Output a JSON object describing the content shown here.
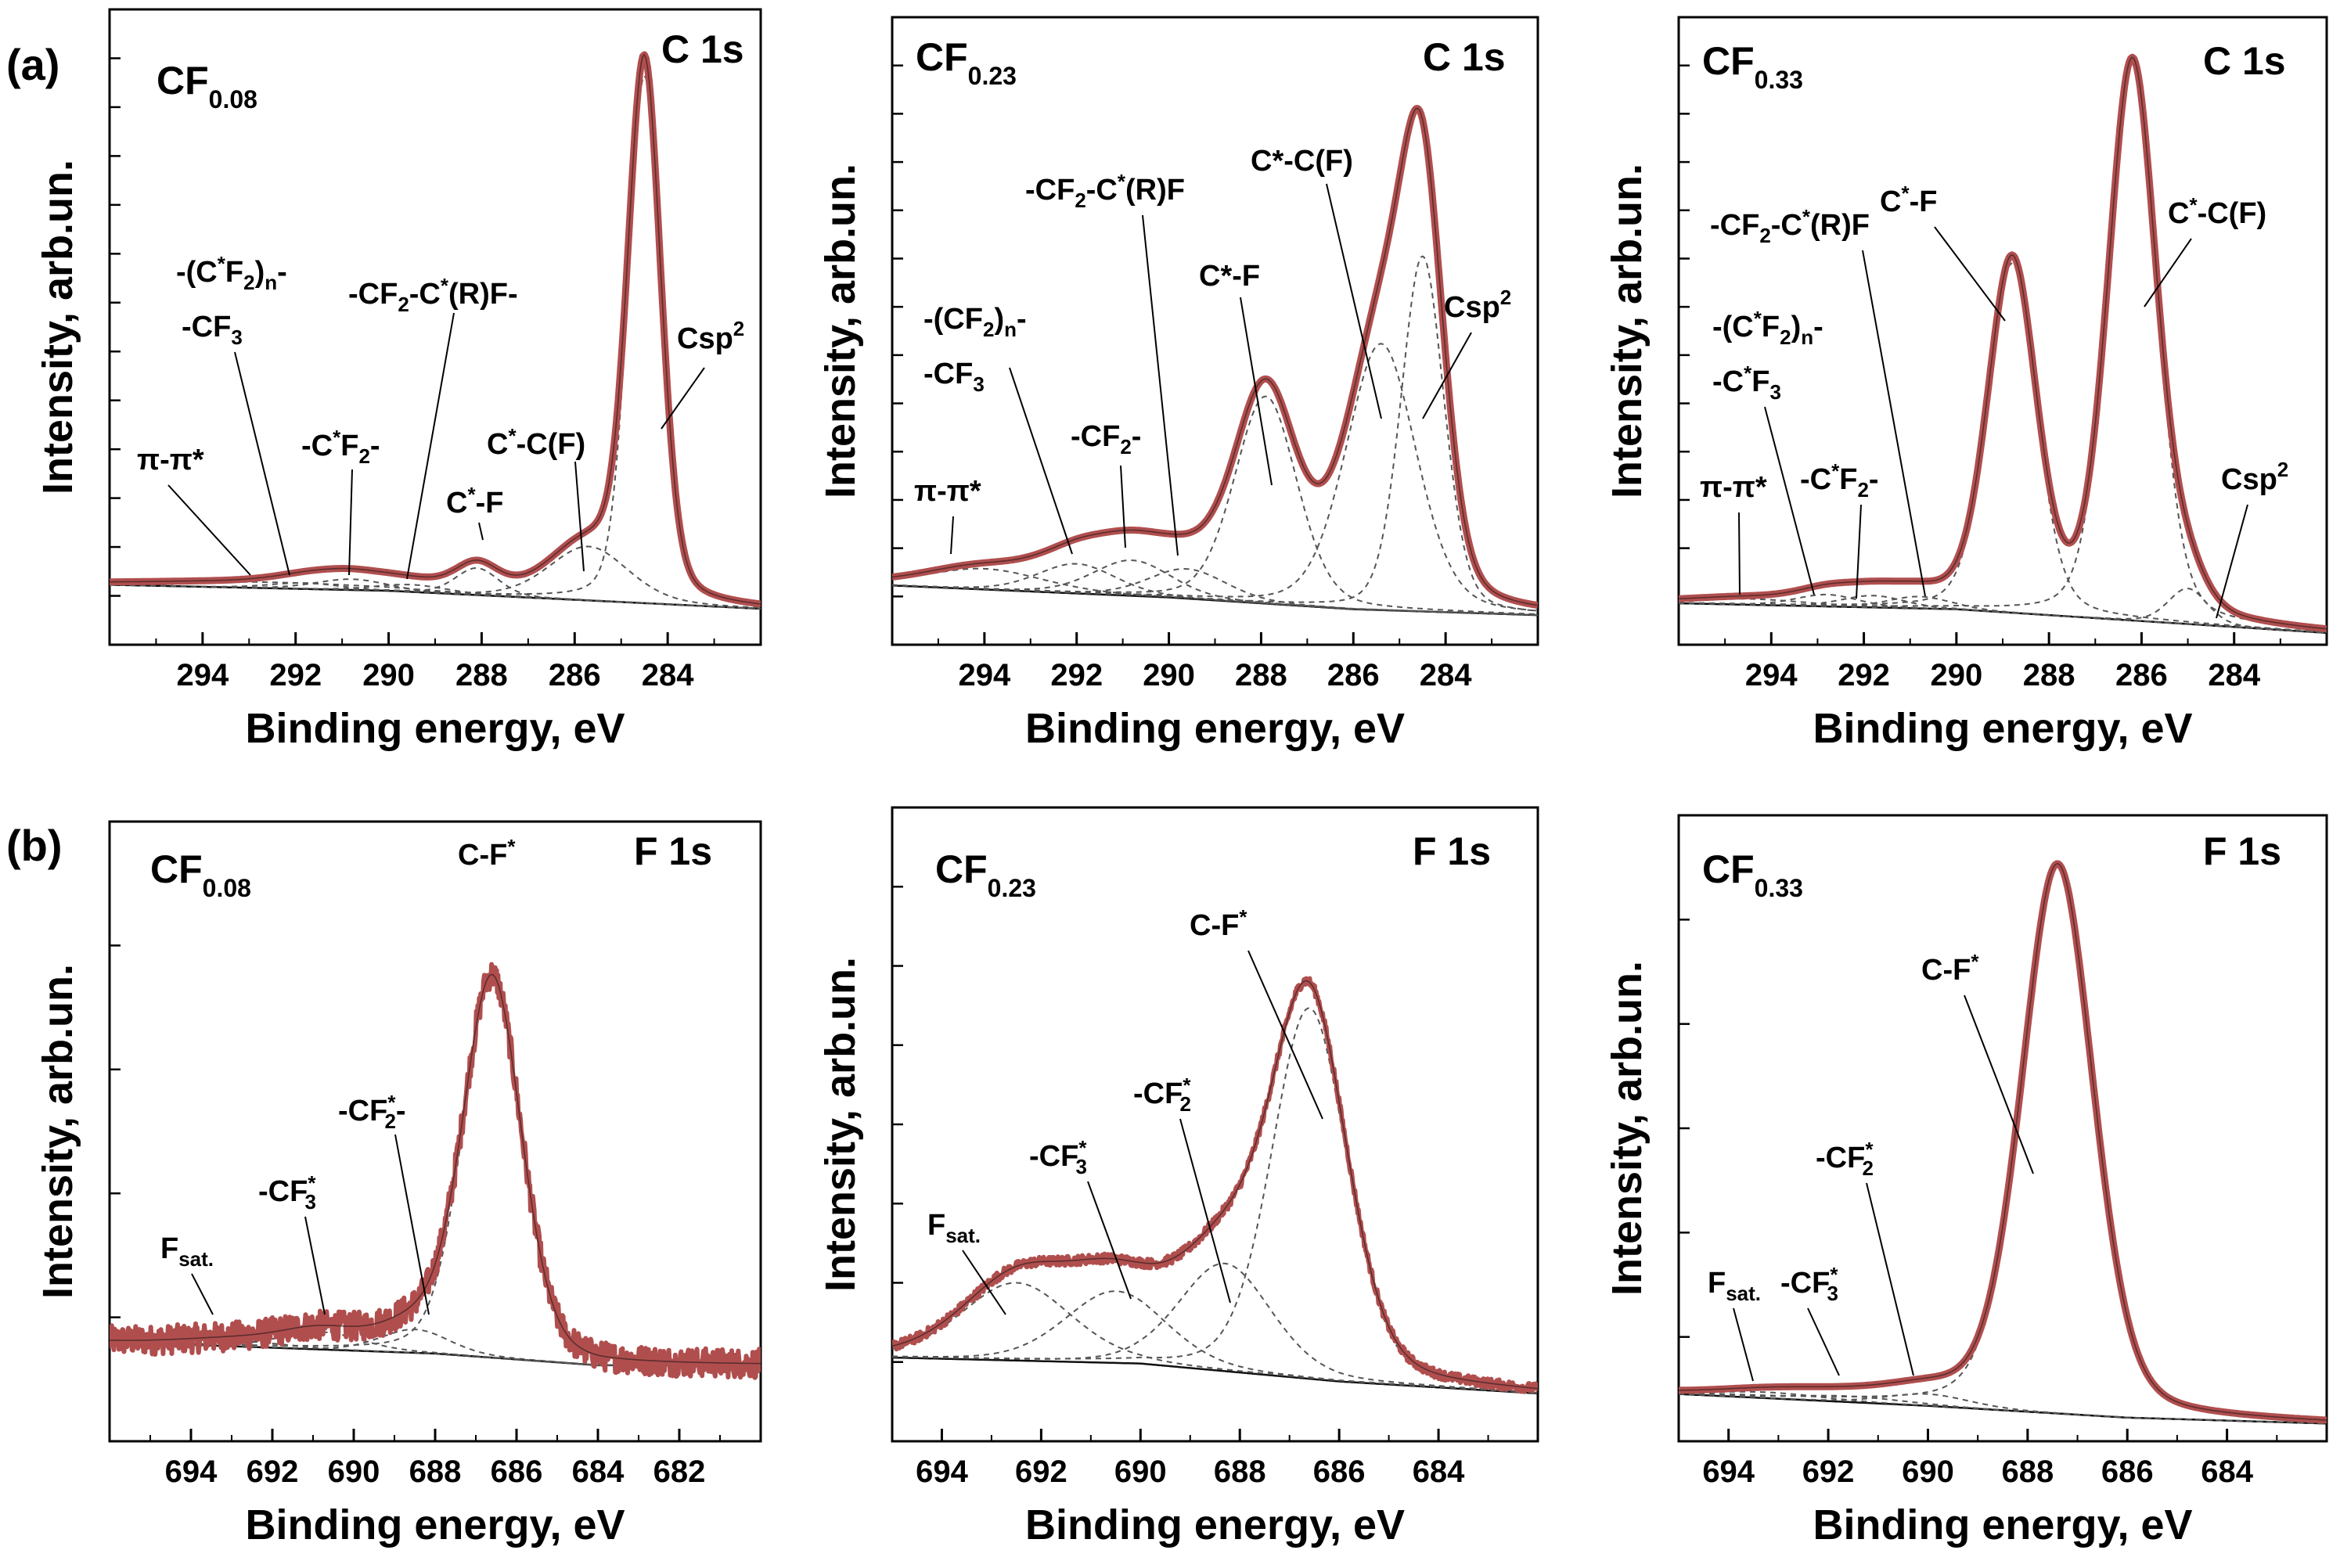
{
  "figure": {
    "row_labels": [
      {
        "id": "a",
        "text": "(a)"
      },
      {
        "id": "b",
        "text": "(b)"
      }
    ],
    "colors": {
      "measured": "#b04e4e",
      "components": "#555555",
      "background": "#111111",
      "axes": "#000000"
    }
  },
  "chart_data": [
    {
      "type": "line",
      "panel": "a1",
      "core_level": "C 1s",
      "sample": {
        "base": "CF",
        "sub": "0.08"
      },
      "xlabel": "Binding energy, eV",
      "ylabel": "Intensity, arb.un.",
      "xlim": [
        296,
        282
      ],
      "ylim": [
        0,
        1.06
      ],
      "x_ticks": [
        294,
        292,
        290,
        288,
        286,
        284
      ],
      "y_tick_count": 12,
      "grid": false,
      "background": [
        [
          296,
          0.1
        ],
        [
          290,
          0.09
        ],
        [
          286,
          0.075
        ],
        [
          282,
          0.06
        ]
      ],
      "peaks": [
        {
          "name": "pi-pi*",
          "center": 292.5,
          "amp": 0.01,
          "width": 3.0
        },
        {
          "name": "-(C*F2)n- -CF3",
          "center": 291.8,
          "amp": 0.01,
          "width": 0.9
        },
        {
          "name": "-C*F2-",
          "center": 290.8,
          "amp": 0.018,
          "width": 0.9
        },
        {
          "name": "-CF2-C*(R)F-",
          "center": 289.5,
          "amp": 0.012,
          "width": 0.9
        },
        {
          "name": "C*-F",
          "center": 288.1,
          "amp": 0.045,
          "width": 0.55
        },
        {
          "name": "C*-C(F)",
          "center": 285.7,
          "amp": 0.09,
          "width": 1.0
        },
        {
          "name": "Csp2",
          "center": 284.5,
          "amp": 0.88,
          "width": 0.42
        }
      ],
      "annotations": [
        {
          "id": "pipi",
          "text": "π-π*"
        },
        {
          "id": "cf2n",
          "text": "-(C*F2)n-"
        },
        {
          "id": "cf3",
          "text": "-CF3"
        },
        {
          "id": "cf2",
          "text": "-C*F2-"
        },
        {
          "id": "cf2crf",
          "text": "-CF2-C*(R)F-"
        },
        {
          "id": "cf",
          "text": "C*-F"
        },
        {
          "id": "ccf",
          "text": "C*-C(F)"
        },
        {
          "id": "csp2",
          "text": "Csp2"
        }
      ]
    },
    {
      "type": "line",
      "panel": "a2",
      "core_level": "C 1s",
      "sample": {
        "base": "CF",
        "sub": "0.23"
      },
      "xlabel": "Binding energy, eV",
      "ylabel": "Intensity, arb.un.",
      "xlim": [
        296,
        282
      ],
      "ylim": [
        0,
        1.06
      ],
      "x_ticks": [
        294,
        292,
        290,
        288,
        286,
        284
      ],
      "y_tick_count": 12,
      "grid": false,
      "background": [
        [
          296,
          0.1
        ],
        [
          290,
          0.08
        ],
        [
          286,
          0.06
        ],
        [
          282,
          0.05
        ]
      ],
      "peaks": [
        {
          "name": "pi-pi*",
          "center": 294.0,
          "amp": 0.035,
          "width": 1.5
        },
        {
          "name": "-(CF2)n- -CF3",
          "center": 292.0,
          "amp": 0.05,
          "width": 1.0
        },
        {
          "name": "-CF2-",
          "center": 290.8,
          "amp": 0.06,
          "width": 1.0
        },
        {
          "name": "-CF2-C*(R)F",
          "center": 289.6,
          "amp": 0.05,
          "width": 1.0
        },
        {
          "name": "C*-F",
          "center": 287.9,
          "amp": 0.35,
          "width": 0.8
        },
        {
          "name": "C*-C(F)",
          "center": 285.4,
          "amp": 0.45,
          "width": 0.9
        },
        {
          "name": "Csp2",
          "center": 284.5,
          "amp": 0.6,
          "width": 0.55
        }
      ],
      "annotations": [
        {
          "id": "pipi",
          "text": "π-π*"
        },
        {
          "id": "cf2n",
          "text": "-(CF2)n-"
        },
        {
          "id": "cf3",
          "text": "-CF3"
        },
        {
          "id": "cf2",
          "text": "-CF2-"
        },
        {
          "id": "cf2crf",
          "text": "-CF2-C*(R)F"
        },
        {
          "id": "cf",
          "text": "C*-F"
        },
        {
          "id": "ccf",
          "text": "C*-C(F)"
        },
        {
          "id": "csp2",
          "text": "Csp2"
        }
      ]
    },
    {
      "type": "line",
      "panel": "a3",
      "core_level": "C 1s",
      "sample": {
        "base": "CF",
        "sub": "0.33"
      },
      "xlabel": "Binding energy, eV",
      "ylabel": "Intensity, arb.un.",
      "xlim": [
        296,
        282
      ],
      "ylim": [
        0,
        1.06
      ],
      "x_ticks": [
        294,
        292,
        290,
        288,
        286,
        284
      ],
      "y_tick_count": 12,
      "grid": false,
      "background": [
        [
          296,
          0.07
        ],
        [
          290,
          0.06
        ],
        [
          286,
          0.04
        ],
        [
          282,
          0.02
        ]
      ],
      "peaks": [
        {
          "name": "pi-pi*",
          "center": 294.5,
          "amp": 0.01,
          "width": 1.5
        },
        {
          "name": "-(C*F2)n- -C*F3",
          "center": 292.8,
          "amp": 0.02,
          "width": 0.8
        },
        {
          "name": "-C*F2-",
          "center": 291.8,
          "amp": 0.02,
          "width": 0.8
        },
        {
          "name": "-CF2-C*(R)F",
          "center": 290.8,
          "amp": 0.02,
          "width": 0.8
        },
        {
          "name": "C*-F",
          "center": 288.8,
          "amp": 0.59,
          "width": 0.62
        },
        {
          "name": "C*-C(F)",
          "center": 286.2,
          "amp": 0.94,
          "width": 0.62
        },
        {
          "name": "Csp2",
          "center": 285.0,
          "amp": 0.06,
          "width": 0.5
        }
      ],
      "annotations": [
        {
          "id": "pipi",
          "text": "π-π*"
        },
        {
          "id": "cf2n",
          "text": "-(C*F2)n-"
        },
        {
          "id": "cf3",
          "text": "-C*F3"
        },
        {
          "id": "cf2",
          "text": "-C*F2-"
        },
        {
          "id": "cf2crf",
          "text": "-CF2-C*(R)F"
        },
        {
          "id": "cf",
          "text": "C*-F"
        },
        {
          "id": "ccf",
          "text": "C*-C(F)"
        },
        {
          "id": "csp2",
          "text": "Csp2"
        }
      ]
    },
    {
      "type": "line",
      "panel": "b1",
      "core_level": "F 1s",
      "sample": {
        "base": "CF",
        "sub": "0.08"
      },
      "xlabel": "Binding energy, eV",
      "ylabel": "Intensity, arb.un.",
      "xlim": [
        696,
        680
      ],
      "ylim": [
        0,
        1.06
      ],
      "x_ticks": [
        694,
        692,
        690,
        688,
        686,
        684,
        682
      ],
      "y_tick_count": 4,
      "grid": false,
      "noise": 0.025,
      "background": [
        [
          696,
          0.17
        ],
        [
          688,
          0.15
        ],
        [
          684,
          0.13
        ],
        [
          680,
          0.13
        ]
      ],
      "peaks": [
        {
          "name": "Fsat.",
          "center": 693.0,
          "amp": 0.01,
          "width": 1.5
        },
        {
          "name": "-CF*3",
          "center": 690.8,
          "amp": 0.03,
          "width": 1.2
        },
        {
          "name": "-CF*2-",
          "center": 688.5,
          "amp": 0.04,
          "width": 1.0
        },
        {
          "name": "C-F*",
          "center": 686.6,
          "amp": 0.65,
          "width": 0.85
        }
      ],
      "annotations": [
        {
          "id": "fsat",
          "text": "Fsat."
        },
        {
          "id": "cf3",
          "text": "-CF*3"
        },
        {
          "id": "cf2",
          "text": "-CF*2-"
        },
        {
          "id": "cf",
          "text": "C-F*"
        }
      ]
    },
    {
      "type": "line",
      "panel": "b2",
      "core_level": "F 1s",
      "sample": {
        "base": "CF",
        "sub": "0.23"
      },
      "xlabel": "Binding energy, eV",
      "ylabel": "Intensity, arb.un.",
      "xlim": [
        695,
        682
      ],
      "ylim": [
        0,
        1.06
      ],
      "x_ticks": [
        694,
        692,
        690,
        688,
        686,
        684
      ],
      "y_tick_count": 7,
      "grid": false,
      "noise": 0.008,
      "background": [
        [
          695,
          0.14
        ],
        [
          690,
          0.13
        ],
        [
          686,
          0.1
        ],
        [
          682,
          0.08
        ]
      ],
      "peaks": [
        {
          "name": "Fsat.",
          "center": 692.5,
          "amp": 0.13,
          "width": 1.3
        },
        {
          "name": "-CF*3",
          "center": 690.5,
          "amp": 0.12,
          "width": 1.2
        },
        {
          "name": "-CF*2",
          "center": 688.3,
          "amp": 0.18,
          "width": 1.1
        },
        {
          "name": "C-F*",
          "center": 686.6,
          "amp": 0.62,
          "width": 0.9
        }
      ],
      "annotations": [
        {
          "id": "fsat",
          "text": "Fsat."
        },
        {
          "id": "cf3",
          "text": "-CF*3"
        },
        {
          "id": "cf2",
          "text": "-CF*2"
        },
        {
          "id": "cf",
          "text": "C-F*"
        }
      ]
    },
    {
      "type": "line",
      "panel": "b3",
      "core_level": "F 1s",
      "sample": {
        "base": "CF",
        "sub": "0.33"
      },
      "xlabel": "Binding energy, eV",
      "ylabel": "Intensity, arb.un.",
      "xlim": [
        695,
        682
      ],
      "ylim": [
        0,
        1.06
      ],
      "x_ticks": [
        694,
        692,
        690,
        688,
        686,
        684
      ],
      "y_tick_count": 5,
      "grid": false,
      "background": [
        [
          695,
          0.08
        ],
        [
          690,
          0.06
        ],
        [
          686,
          0.04
        ],
        [
          682,
          0.03
        ]
      ],
      "peaks": [
        {
          "name": "Fsat.",
          "center": 693.2,
          "amp": 0.01,
          "width": 1.3
        },
        {
          "name": "-CF*3",
          "center": 691.6,
          "amp": 0.01,
          "width": 1.3
        },
        {
          "name": "-CF*2",
          "center": 690.0,
          "amp": 0.02,
          "width": 1.0
        },
        {
          "name": "C-F*",
          "center": 687.4,
          "amp": 0.93,
          "width": 0.85
        }
      ],
      "annotations": [
        {
          "id": "fsat",
          "text": "Fsat."
        },
        {
          "id": "cf3",
          "text": "-CF*3"
        },
        {
          "id": "cf2",
          "text": "-CF*2"
        },
        {
          "id": "cf",
          "text": "C-F*"
        }
      ]
    }
  ]
}
